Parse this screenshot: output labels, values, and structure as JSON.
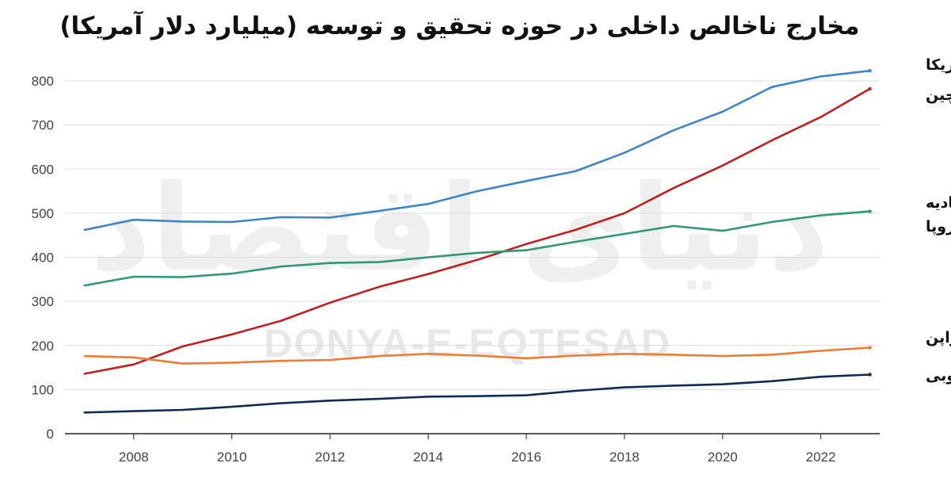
{
  "chart_data": {
    "type": "line",
    "title": "مخارج ناخالص داخلی در حوزه تحقیق و توسعه (میلیارد دلار آمریکا)",
    "x": [
      2007,
      2008,
      2009,
      2010,
      2011,
      2012,
      2013,
      2014,
      2015,
      2016,
      2017,
      2018,
      2019,
      2020,
      2021,
      2022,
      2023
    ],
    "xticks": [
      "2008",
      "2010",
      "2012",
      "2014",
      "2016",
      "2018",
      "2020",
      "2022"
    ],
    "xlim": [
      2006.6,
      2023.2
    ],
    "yticks": [
      "0",
      "100",
      "200",
      "300",
      "400",
      "500",
      "600",
      "700",
      "800"
    ],
    "ylim": [
      0,
      800
    ],
    "grid": true,
    "legend": "end-labels-right",
    "series": [
      {
        "name": "آمریکا",
        "label_lines": [
          "آمریکا"
        ],
        "color": "#3f86c8",
        "values": [
          462,
          485,
          481,
          480,
          491,
          490,
          505,
          521,
          550,
          573,
          595,
          637,
          688,
          730,
          786,
          810,
          823
        ]
      },
      {
        "name": "چین",
        "label_lines": [
          "چین"
        ],
        "color": "#c41f1f",
        "values": [
          136,
          157,
          198,
          225,
          256,
          297,
          333,
          362,
          394,
          430,
          462,
          500,
          557,
          608,
          665,
          718,
          782
        ]
      },
      {
        "name": "اتحادیه اروپا",
        "label_lines": [
          "اتحادیه",
          "اروپا"
        ],
        "color": "#2e9a75",
        "values": [
          336,
          356,
          355,
          363,
          379,
          387,
          389,
          400,
          410,
          416,
          435,
          453,
          471,
          460,
          480,
          495,
          504
        ]
      },
      {
        "name": "ژاپن",
        "label_lines": [
          "ژاپن"
        ],
        "color": "#f07b33",
        "values": [
          176,
          173,
          159,
          161,
          165,
          167,
          176,
          181,
          177,
          171,
          177,
          181,
          179,
          176,
          179,
          188,
          195
        ]
      },
      {
        "name": "کره جنوبی",
        "label_lines": [
          "کره جنوبی"
        ],
        "color": "#0d2c54",
        "values": [
          48,
          51,
          54,
          61,
          69,
          75,
          79,
          84,
          85,
          87,
          97,
          105,
          109,
          112,
          119,
          129,
          134
        ]
      }
    ]
  },
  "watermark": {
    "logo_text": "دنیای اقتصاد",
    "latin_text": "DONYA-E-EQTESAD"
  }
}
